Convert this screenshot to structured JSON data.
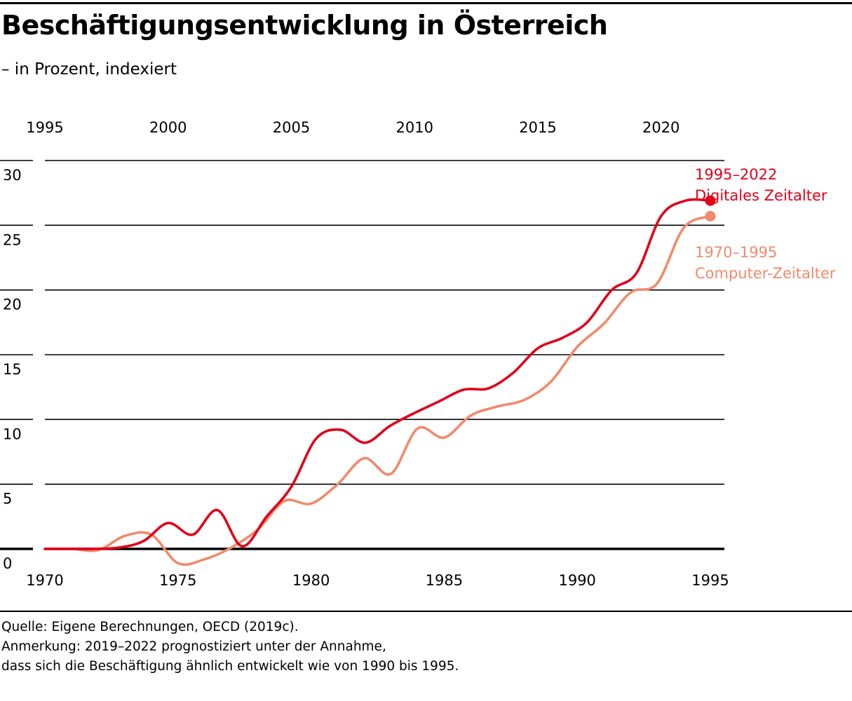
{
  "title": "Beschäftigungsentwicklung in Österreich",
  "subtitle": "– in Prozent, indexiert",
  "notes": [
    "Quelle: Eigene Berechnungen, OECD (2019c).",
    "Anmerkung: 2019–2022 prognostiziert unter der Annahme,",
    "dass sich die Beschäftigung ähnlich entwickelt wie von 1990 bis 1995."
  ],
  "colors": {
    "digital": "#e2001a",
    "computer": "#f08a6c",
    "grid": "#000000"
  },
  "chart_data": {
    "type": "line",
    "title": "Beschäftigungsentwicklung in Österreich",
    "subtitle": "– in Prozent, indexiert",
    "ylim": [
      0,
      30
    ],
    "y_ticks": [
      "0",
      "5",
      "10",
      "15",
      "20",
      "25",
      "30"
    ],
    "x_bottom_ticks": [
      "1970",
      "1975",
      "1980",
      "1985",
      "1990",
      "1995"
    ],
    "x_top_ticks": [
      "1995",
      "2000",
      "2005",
      "2010",
      "2015",
      "2020"
    ],
    "grid": true,
    "series": [
      {
        "name": "1995–2022 Digitales Zeitalter",
        "label_lines": [
          "1995–2022",
          "Digitales Zeitalter"
        ],
        "axis": "top",
        "color": "#e2001a",
        "x": [
          1995,
          1996,
          1997,
          1998,
          1999,
          2000,
          2001,
          2002,
          2003,
          2004,
          2005,
          2006,
          2007,
          2008,
          2009,
          2010,
          2011,
          2012,
          2013,
          2014,
          2015,
          2016,
          2017,
          2018,
          2019,
          2020,
          2021,
          2022
        ],
        "y": [
          0,
          0,
          0,
          0.1,
          0.6,
          2.0,
          1.1,
          3.0,
          0.2,
          2.5,
          4.8,
          8.5,
          9.2,
          8.2,
          9.5,
          10.5,
          11.4,
          12.3,
          12.4,
          13.6,
          15.5,
          16.3,
          17.5,
          20.0,
          21.3,
          25.7,
          26.9,
          26.9
        ]
      },
      {
        "name": "1970–1995 Computer-Zeitalter",
        "label_lines": [
          "1970–1995",
          "Computer-Zeitalter"
        ],
        "axis": "bottom",
        "color": "#f08a6c",
        "x": [
          1970,
          1971,
          1972,
          1973,
          1974,
          1975,
          1976,
          1977,
          1978,
          1979,
          1980,
          1981,
          1982,
          1983,
          1984,
          1985,
          1986,
          1987,
          1988,
          1989,
          1990,
          1991,
          1992,
          1993,
          1994,
          1995
        ],
        "y": [
          0,
          0,
          -0.1,
          1.0,
          1.1,
          -1.1,
          -0.8,
          0.1,
          1.5,
          3.7,
          3.5,
          5.0,
          7.0,
          5.8,
          9.3,
          8.6,
          10.3,
          11.0,
          11.5,
          12.9,
          15.6,
          17.4,
          19.8,
          20.5,
          24.8,
          25.7
        ]
      }
    ]
  }
}
